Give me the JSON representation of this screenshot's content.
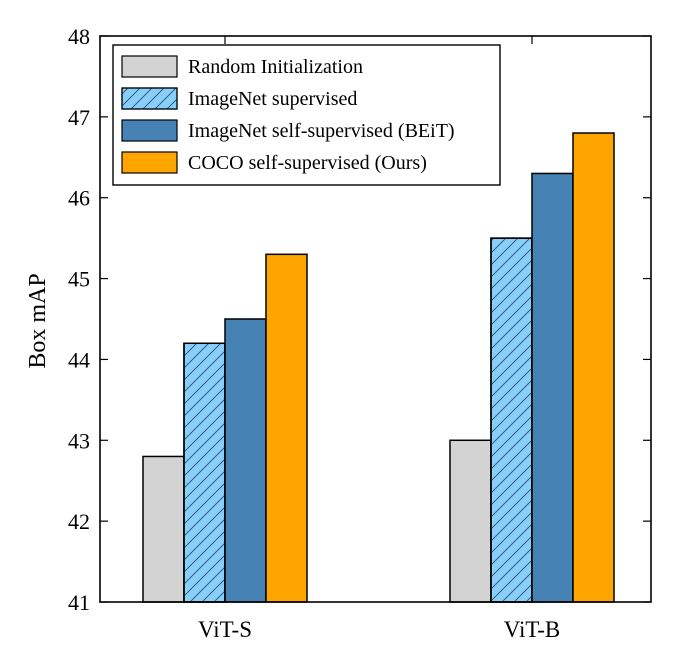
{
  "chart_data": {
    "type": "bar",
    "categories": [
      "ViT-S",
      "ViT-B"
    ],
    "series": [
      {
        "name": "Random Initialization",
        "values": [
          42.8,
          43.0
        ],
        "color": "#d3d3d3",
        "hatch": false
      },
      {
        "name": "ImageNet supervised",
        "values": [
          44.2,
          45.5
        ],
        "color": "#87cefa",
        "hatch": true
      },
      {
        "name": "ImageNet self-supervised (BEiT)",
        "values": [
          44.5,
          46.3
        ],
        "color": "#4682b4",
        "hatch": false
      },
      {
        "name": "COCO self-supervised (Ours)",
        "values": [
          45.3,
          46.8
        ],
        "color": "#ffa500",
        "hatch": false
      }
    ],
    "ylabel": "Box mAP",
    "xlabel": "",
    "ylim": [
      41,
      48
    ],
    "yticks": [
      41,
      42,
      43,
      44,
      45,
      46,
      47,
      48
    ],
    "grid": false,
    "legend_position": "top-left"
  }
}
